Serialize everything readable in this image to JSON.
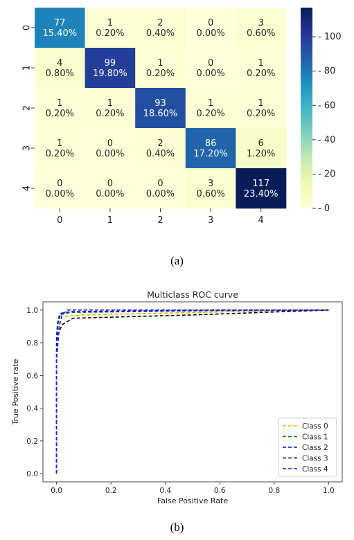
{
  "figures": {
    "caption_a": "(a)",
    "caption_b": "(b)"
  },
  "chart_data": [
    {
      "type": "heatmap",
      "title": "",
      "xlabel": "",
      "ylabel": "",
      "x_ticks": [
        "0",
        "1",
        "2",
        "3",
        "4"
      ],
      "y_ticks": [
        "0",
        "1",
        "2",
        "3",
        "4"
      ],
      "values": [
        [
          77,
          1,
          2,
          0,
          3
        ],
        [
          4,
          99,
          1,
          0,
          1
        ],
        [
          1,
          1,
          93,
          1,
          1
        ],
        [
          1,
          0,
          2,
          86,
          6
        ],
        [
          0,
          0,
          0,
          3,
          117
        ]
      ],
      "percent_labels": [
        [
          "15.40%",
          "0.20%",
          "0.40%",
          "0.00%",
          "0.60%"
        ],
        [
          "0.80%",
          "19.80%",
          "0.20%",
          "0.00%",
          "0.20%"
        ],
        [
          "0.20%",
          "0.20%",
          "18.60%",
          "0.20%",
          "0.20%"
        ],
        [
          "0.20%",
          "0.00%",
          "0.40%",
          "17.20%",
          "1.20%"
        ],
        [
          "0.00%",
          "0.00%",
          "0.00%",
          "0.60%",
          "23.40%"
        ]
      ],
      "colorbar": {
        "range": [
          0,
          117
        ],
        "ticks": [
          0,
          20,
          40,
          60,
          80,
          100
        ],
        "colormap": [
          "#ffffd9",
          "#edf8b1",
          "#c7e9b4",
          "#7fcdbb",
          "#41b6c4",
          "#1d91c0",
          "#225ea8",
          "#253494",
          "#081d58"
        ]
      }
    },
    {
      "type": "line",
      "title": "Multiclass ROC curve",
      "xlabel": "False Positive Rate",
      "ylabel": "True Positive rate",
      "xlim": [
        -0.05,
        1.05
      ],
      "ylim": [
        -0.05,
        1.05
      ],
      "x_ticks": [
        "0.0",
        "0.2",
        "0.4",
        "0.6",
        "0.8",
        "1.0"
      ],
      "y_ticks": [
        "0.0",
        "0.2",
        "0.4",
        "0.6",
        "0.8",
        "1.0"
      ],
      "legend_position": "lower-right",
      "series": [
        {
          "name": "Class 0",
          "color": "#ffa500",
          "points": [
            [
              0,
              0
            ],
            [
              0,
              0.75
            ],
            [
              0.005,
              0.9
            ],
            [
              0.02,
              0.96
            ],
            [
              0.1,
              0.97
            ],
            [
              0.5,
              0.985
            ],
            [
              1,
              1
            ]
          ]
        },
        {
          "name": "Class 1",
          "color": "#008000",
          "points": [
            [
              0,
              0
            ],
            [
              0,
              0.85
            ],
            [
              0.004,
              0.93
            ],
            [
              0.01,
              0.97
            ],
            [
              0.05,
              0.985
            ],
            [
              0.5,
              0.995
            ],
            [
              1,
              1
            ]
          ]
        },
        {
          "name": "Class 2",
          "color": "#0000ff",
          "points": [
            [
              0,
              0
            ],
            [
              0,
              0.8
            ],
            [
              0.005,
              0.92
            ],
            [
              0.015,
              0.98
            ],
            [
              0.05,
              0.99
            ],
            [
              0.5,
              0.998
            ],
            [
              1,
              1
            ]
          ]
        },
        {
          "name": "Class 3",
          "color": "#000000",
          "points": [
            [
              0,
              0
            ],
            [
              0,
              0.7
            ],
            [
              0.008,
              0.86
            ],
            [
              0.02,
              0.91
            ],
            [
              0.06,
              0.95
            ],
            [
              0.5,
              0.97
            ],
            [
              1,
              1
            ]
          ]
        },
        {
          "name": "Class 4",
          "color": "#1f1fe6",
          "points": [
            [
              0,
              0
            ],
            [
              0,
              0.75
            ],
            [
              0.01,
              0.9
            ],
            [
              0.02,
              0.97
            ],
            [
              0.04,
              1.0
            ],
            [
              1,
              1
            ]
          ]
        }
      ]
    }
  ]
}
